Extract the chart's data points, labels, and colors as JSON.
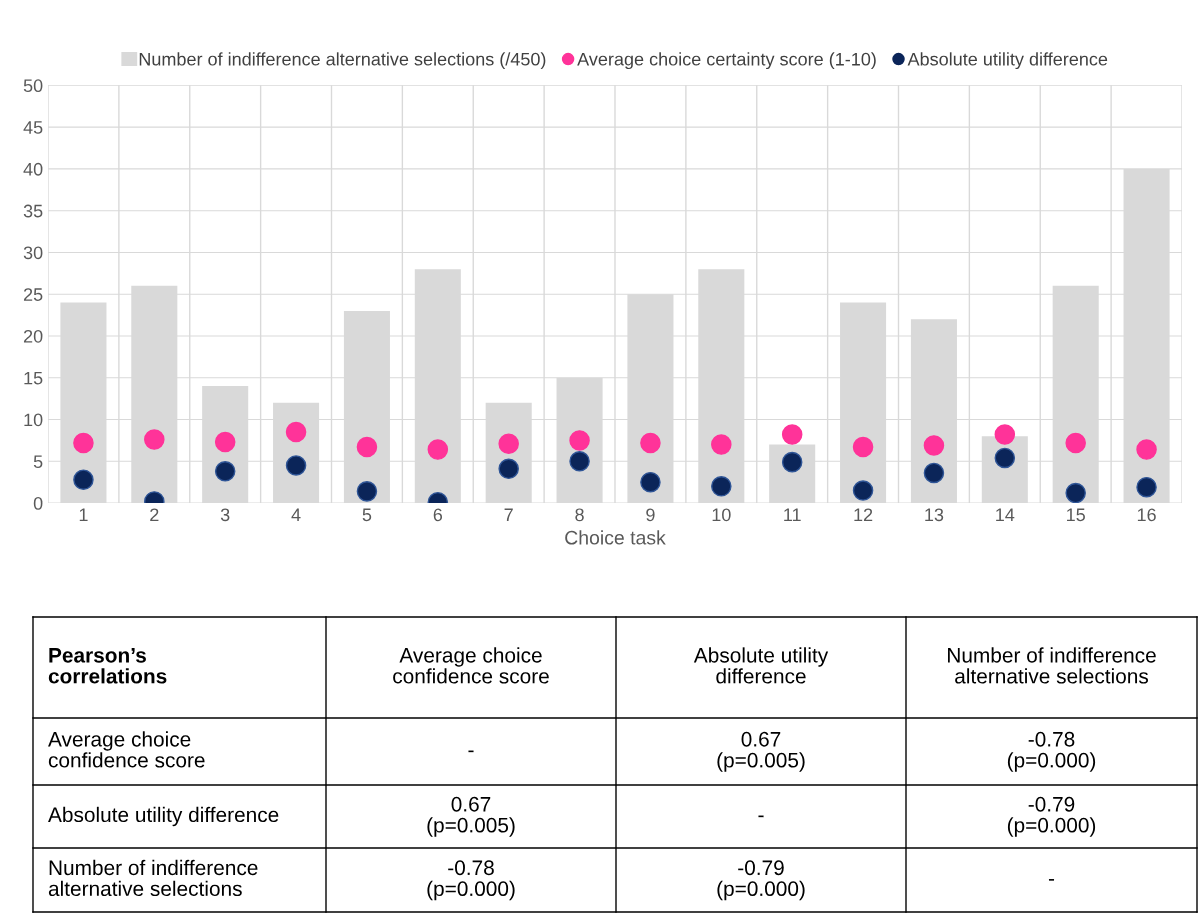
{
  "chart_data": {
    "type": "bar",
    "xlabel": "Choice task",
    "categories": [
      "1",
      "2",
      "3",
      "4",
      "5",
      "6",
      "7",
      "8",
      "9",
      "10",
      "11",
      "12",
      "13",
      "14",
      "15",
      "16"
    ],
    "series": [
      {
        "name": "Number of indifference alternative selections (/450)",
        "color": "#d9d9d9",
        "values": [
          24,
          26,
          14,
          12,
          23,
          28,
          12,
          15,
          25,
          28,
          7,
          24,
          22,
          8,
          26,
          40
        ]
      },
      {
        "name": "Average choice certainty score (1-10)",
        "type": "scatter",
        "color": "#ff3399",
        "values": [
          7.2,
          7.6,
          7.3,
          8.5,
          6.7,
          6.4,
          7.1,
          7.5,
          7.2,
          7.0,
          8.2,
          6.7,
          6.9,
          8.2,
          7.2,
          6.4
        ]
      },
      {
        "name": "Absolute utility difference",
        "type": "scatter",
        "color": "#0b2559",
        "values": [
          2.8,
          0.2,
          3.8,
          4.5,
          1.4,
          0.1,
          4.1,
          5.0,
          2.5,
          2.0,
          4.9,
          1.5,
          3.6,
          5.4,
          1.2,
          1.9
        ]
      }
    ],
    "ylim": [
      0,
      50
    ],
    "yticks": [
      0,
      5,
      10,
      15,
      20,
      25,
      30,
      35,
      40,
      45,
      50
    ],
    "grid": true,
    "legend": "top",
    "marker": "circle",
    "annotations": [
      "Pearson’s\ncorrelations",
      "Average choice\nconfidence score",
      "Absolute utility\ndifference",
      "Number of indifference\nalternative selections",
      "Average choice\nconfidence score",
      "-",
      "0.67\n(p=0.005)",
      "-0.78\n(p=0.000)",
      "Absolute utility difference",
      "0.67\n(p=0.005)",
      "-",
      "-0.79\n(p=0.000)",
      "Number of indifference\nalternative selections",
      "-0.78\n(p=0.000)",
      "-0.79\n(p=0.000)",
      "-"
    ]
  }
}
